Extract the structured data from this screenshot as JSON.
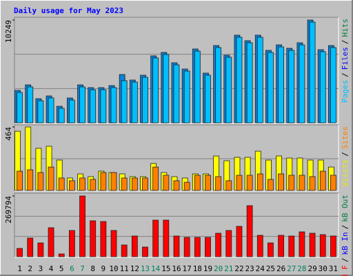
{
  "chart_data": [
    {
      "type": "bar",
      "title": "Daily usage for May 2023",
      "ylim": [
        0,
        10249
      ],
      "yticks": [
        10249
      ],
      "grid": true,
      "grid_divisions": 3,
      "legend_separator": "/",
      "legend": [
        {
          "name": "Pages",
          "color": "#00c0ff"
        },
        {
          "name": "Files",
          "color": "#0000ff"
        },
        {
          "name": "Hits",
          "color": "#008040"
        }
      ],
      "series": [
        {
          "name": "Hits",
          "color": "#0a80d8",
          "values": [
            3233,
            3784,
            2408,
            2683,
            1651,
            2477,
            3784,
            3509,
            3509,
            3715,
            4816,
            4266,
            4747,
            6674,
            7018,
            5986,
            5366,
            7362,
            4954,
            7706,
            6742,
            8738,
            8187,
            8738,
            7224,
            7774,
            7430,
            7981,
            10249,
            7293,
            7706
          ]
        },
        {
          "name": "Pages",
          "color": "#00bfff",
          "values": [
            3030,
            3580,
            2200,
            2480,
            1450,
            2270,
            3580,
            3300,
            3300,
            3510,
            4200,
            4060,
            4540,
            6470,
            6810,
            5780,
            5160,
            7150,
            4750,
            7500,
            6540,
            8530,
            7980,
            8530,
            7020,
            7570,
            7220,
            7770,
            10040,
            7090,
            7500
          ]
        }
      ]
    },
    {
      "type": "bar",
      "ylim": [
        0,
        464
      ],
      "yticks": [
        464
      ],
      "grid": true,
      "grid_divisions": 2,
      "legend_separator": "/",
      "legend": [
        {
          "name": "Visits",
          "color": "#e8e800"
        },
        {
          "name": "Sites",
          "color": "#ff8000"
        }
      ],
      "series": [
        {
          "name": "Visits",
          "color": "#ffff00",
          "values": [
            433,
            464,
            308,
            323,
            222,
            91,
            121,
            101,
            141,
            131,
            121,
            101,
            101,
            197,
            131,
            101,
            91,
            121,
            121,
            252,
            217,
            242,
            242,
            287,
            222,
            252,
            237,
            237,
            222,
            222,
            171
          ]
        },
        {
          "name": "Sites",
          "color": "#ff8000",
          "values": [
            141,
            151,
            131,
            171,
            91,
            71,
            91,
            81,
            131,
            131,
            91,
            91,
            91,
            171,
            111,
            71,
            60,
            111,
            111,
            101,
            71,
            111,
            111,
            121,
            81,
            121,
            111,
            111,
            101,
            141,
            111
          ]
        }
      ]
    },
    {
      "type": "bar",
      "ylim": [
        0,
        269794
      ],
      "yticks": [
        269794
      ],
      "grid": true,
      "grid_divisions": 3,
      "legend_separator": "/",
      "legend": [
        {
          "name": "kB F",
          "color": "#ff0000"
        },
        {
          "name": "kB In",
          "color": "#0000ff"
        },
        {
          "name": "kB Out",
          "color": "#008040"
        }
      ],
      "categories": [
        "1",
        "2",
        "3",
        "4",
        "5",
        "6",
        "7",
        "8",
        "9",
        "10",
        "11",
        "12",
        "13",
        "14",
        "15",
        "16",
        "17",
        "18",
        "19",
        "20",
        "21",
        "22",
        "23",
        "24",
        "25",
        "26",
        "27",
        "28",
        "29",
        "30",
        "31"
      ],
      "label_colors": [
        "#000",
        "#000",
        "#000",
        "#000",
        "#000",
        "#00805c",
        "#00805c",
        "#000",
        "#000",
        "#000",
        "#000",
        "#000",
        "#00805c",
        "#00805c",
        "#000",
        "#000",
        "#000",
        "#000",
        "#000",
        "#00805c",
        "#00805c",
        "#000",
        "#000",
        "#000",
        "#000",
        "#000",
        "#00805c",
        "#00805c",
        "#000",
        "#000",
        "#000"
      ],
      "series": [
        {
          "name": "kB F",
          "color": "#ff0000",
          "values": [
            36792,
            82782,
            61320,
            128772,
            12264,
            116508,
            269794,
            159432,
            156366,
            116508,
            52122,
            91980,
            42924,
            162498,
            162498,
            91980,
            85848,
            85848,
            85848,
            104244,
            116508,
            134904,
            226884,
            95046,
            61320,
            95046,
            91980,
            110376,
            104244,
            98112,
            91980
          ]
        }
      ]
    }
  ]
}
